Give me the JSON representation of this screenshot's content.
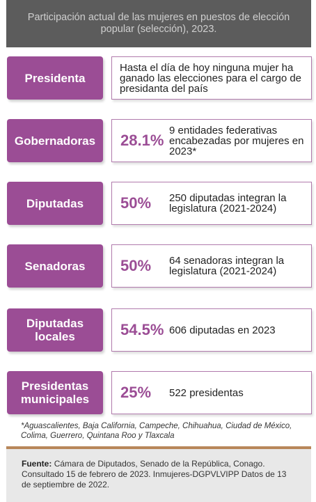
{
  "header": {
    "title": "Participación actual de las mujeres en puestos de elección popular (selección), 2023."
  },
  "rows": [
    {
      "label": "Presidenta",
      "percent": "",
      "description": "Hasta el día de hoy ninguna mujer ha ganado las elecciones para el cargo de presidanta del país"
    },
    {
      "label": "Gobernadoras",
      "percent": "28.1%",
      "description": "9 entidades federativas encabezadas por mujeres en 2023*"
    },
    {
      "label": "Diputadas",
      "percent": "50%",
      "description": "250 diputadas integran la legislatura (2021-2024)"
    },
    {
      "label": "Senadoras",
      "percent": "50%",
      "description": "64 senadoras integran la legislatura (2021-2024)"
    },
    {
      "label": "Diputadas locales",
      "percent": "54.5%",
      "description": "606 diputadas en 2023"
    },
    {
      "label": "Presidentas municipales",
      "percent": "25%",
      "description": "522 presidentas"
    }
  ],
  "footnote": "*Aguascalientes, Baja California, Campeche, Chihuahua, Ciudad de México, Colima, Guerrero, Quintana Roo y Tlaxcala",
  "source": {
    "label": "Fuente:",
    "text": "Cámara de Diputados, Senado de la República, Conago. Consultado 15 de febrero de 2023. Inmujeres-DGPVLVIPP Datos de 13 de septiembre de 2022."
  },
  "colors": {
    "accent": "#9b4d95",
    "header_bg": "#5c5c5c",
    "source_bg": "#e8e8e8",
    "rule": "#b8875a"
  }
}
